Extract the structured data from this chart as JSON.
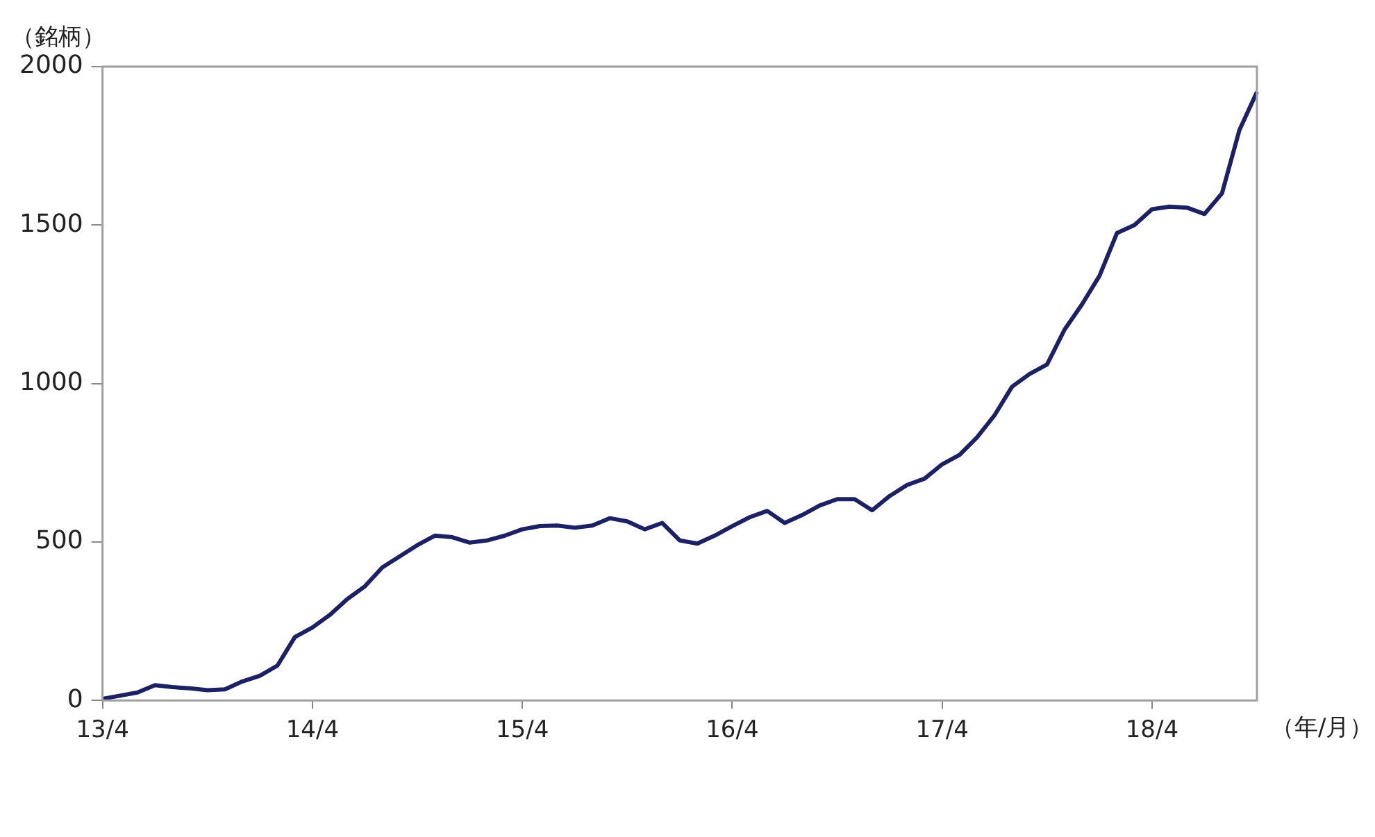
{
  "chart_data": {
    "type": "line",
    "ylabel": "（銘柄）",
    "xlabel": "（年/月）",
    "categories": [
      "13/4",
      null,
      null,
      null,
      null,
      null,
      null,
      null,
      null,
      null,
      null,
      null,
      "14/4",
      null,
      null,
      null,
      null,
      null,
      null,
      null,
      null,
      null,
      null,
      null,
      "15/4",
      null,
      null,
      null,
      null,
      null,
      null,
      null,
      null,
      null,
      null,
      null,
      "16/4",
      null,
      null,
      null,
      null,
      null,
      null,
      null,
      null,
      null,
      null,
      null,
      "17/4",
      null,
      null,
      null,
      null,
      null,
      null,
      null,
      null,
      null,
      null,
      null,
      "18/4",
      null,
      null,
      null,
      null,
      null,
      null
    ],
    "series": [
      {
        "color": "#1c2064",
        "values": [
          5,
          15,
          25,
          48,
          42,
          38,
          32,
          35,
          60,
          78,
          110,
          200,
          230,
          270,
          320,
          360,
          420,
          455,
          490,
          520,
          515,
          498,
          505,
          520,
          540,
          550,
          552,
          545,
          552,
          575,
          565,
          540,
          560,
          505,
          495,
          520,
          550,
          578,
          598,
          560,
          585,
          615,
          635,
          635,
          600,
          645,
          680,
          700,
          745,
          775,
          830,
          900,
          990,
          1030,
          1060,
          1170,
          1250,
          1340,
          1475,
          1500,
          1550,
          1558,
          1555,
          1535,
          1600,
          1800,
          1920
        ]
      }
    ],
    "ylim": [
      0,
      2000
    ],
    "yticks": [
      0,
      500,
      1000,
      1500,
      2000
    ],
    "marker": "none"
  }
}
